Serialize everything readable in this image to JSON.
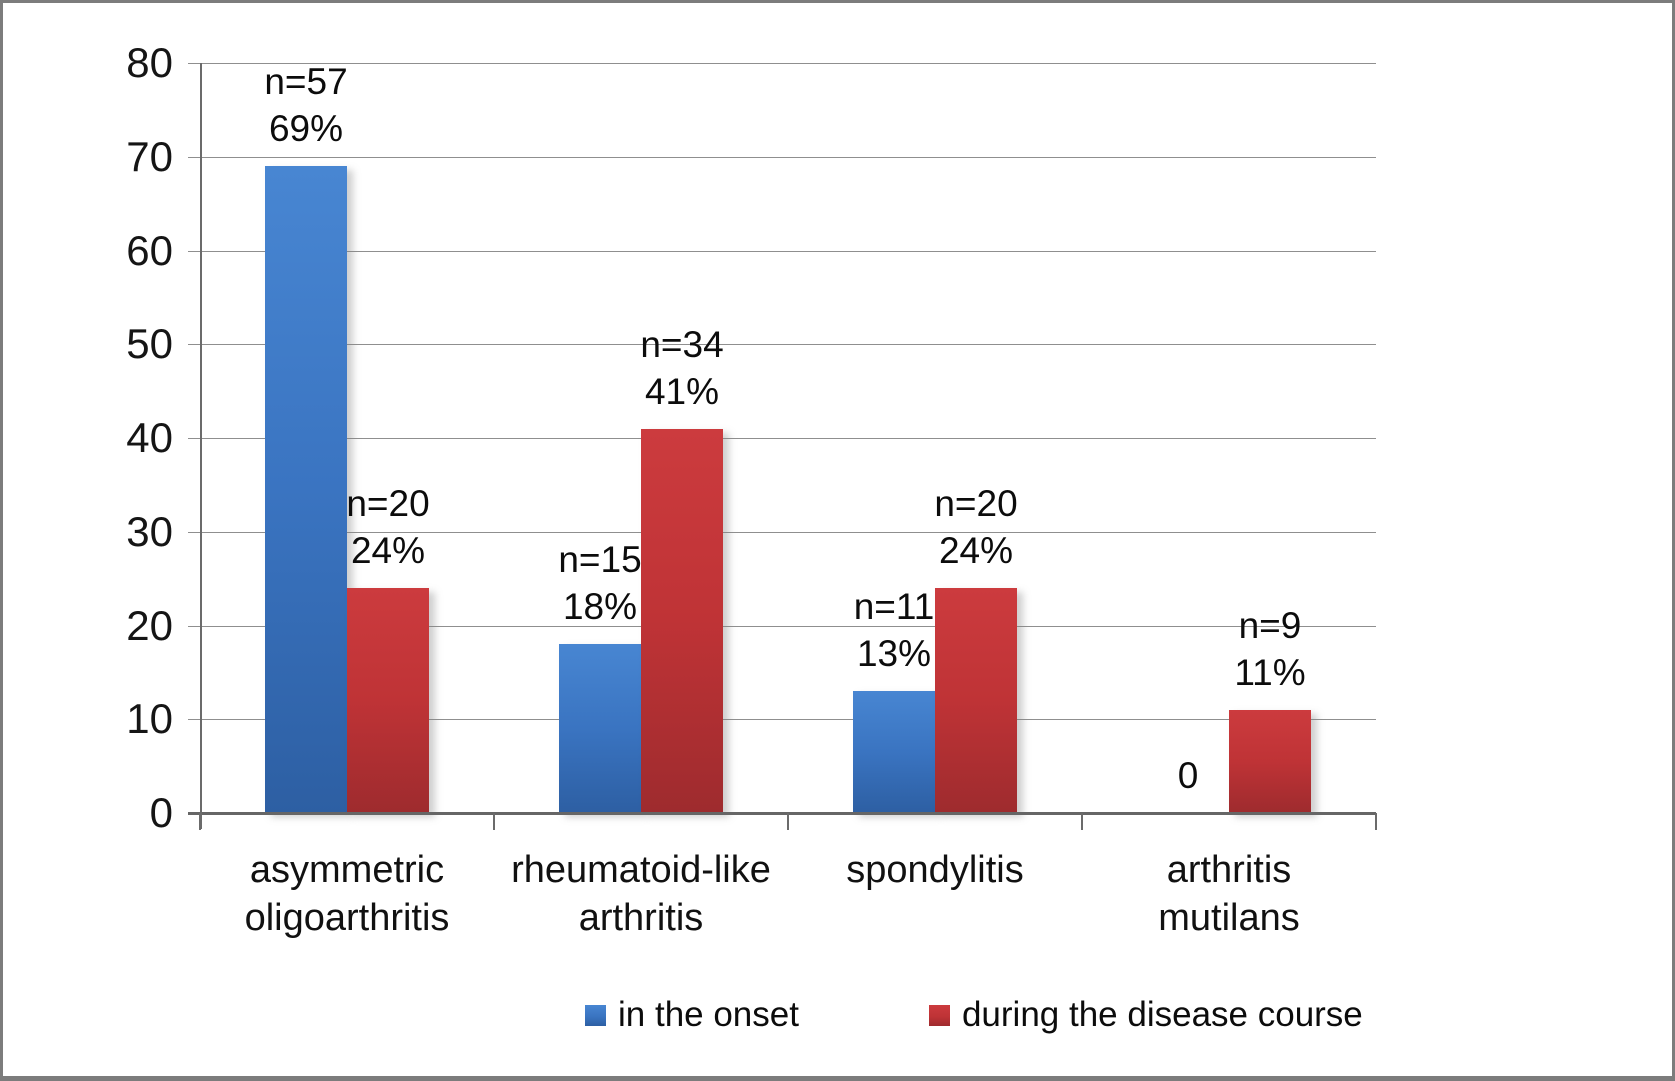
{
  "chart_data": {
    "type": "bar",
    "title": "",
    "xlabel": "",
    "ylabel": "",
    "categories": [
      "asymmetric\noligoarthritis",
      "rheumatoid-like\narthritis",
      "spondylitis",
      "arthritis\nmutilans"
    ],
    "series": [
      {
        "name": "in the onset",
        "color": "#3a74c1",
        "values": [
          69,
          18,
          13,
          0
        ],
        "bar_labels": [
          "n=57\n69%",
          "n=15\n18%",
          "n=11\n13%",
          "0"
        ]
      },
      {
        "name": "during the disease course",
        "color": "#bf3336",
        "values": [
          24,
          41,
          24,
          11
        ],
        "bar_labels": [
          "n=20\n24%",
          "n=34\n41%",
          "n=20\n24%",
          "n=9\n11%"
        ]
      }
    ],
    "ylim": [
      0,
      80
    ],
    "yticks": [
      0,
      10,
      20,
      30,
      40,
      50,
      60,
      70,
      80
    ],
    "grid": true,
    "legend_position": "bottom"
  }
}
